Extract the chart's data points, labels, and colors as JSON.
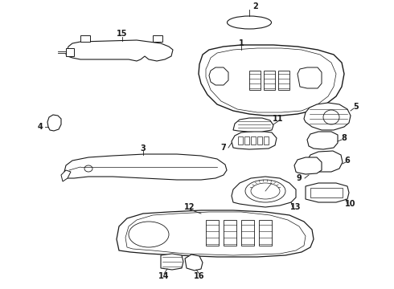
{
  "bg_color": "#ffffff",
  "line_color": "#1a1a1a",
  "figsize": [
    4.9,
    3.6
  ],
  "dpi": 100,
  "label_fs": 7
}
